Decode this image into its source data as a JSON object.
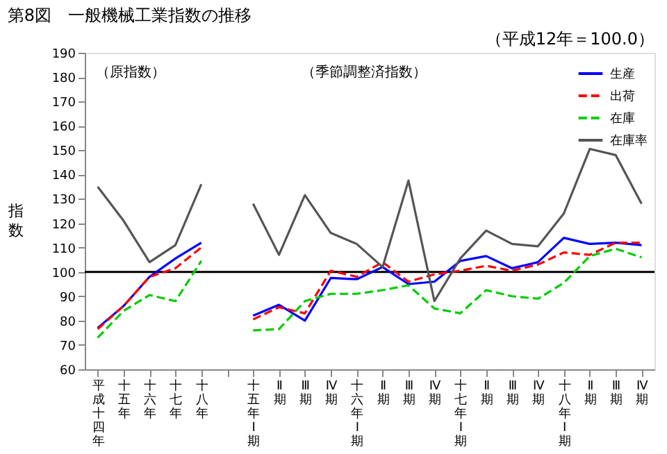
{
  "chart_data": {
    "type": "line",
    "title": "第8図　一般機械工業指数の推移",
    "ylabel": "指数",
    "annotations": [
      "（平成12年＝100.0）",
      "（原指数）",
      "（季節調整済指数）"
    ],
    "categories": [
      "平成十四年",
      "十五年",
      "十六年",
      "十七年",
      "十八年",
      null,
      "十五年Ⅰ期",
      "Ⅱ期",
      "Ⅲ期",
      "Ⅳ期",
      "十六年Ⅰ期",
      "Ⅱ期",
      "Ⅲ期",
      "Ⅳ期",
      "十七年Ⅰ期",
      "Ⅱ期",
      "Ⅲ期",
      "Ⅳ期",
      "十八年Ⅰ期",
      "Ⅱ期",
      "Ⅲ期",
      "Ⅳ期"
    ],
    "series": [
      {
        "name": "生産",
        "color": "#0000ff",
        "line_style": "solid",
        "values": [
          77,
          86,
          98,
          105.5,
          112,
          null,
          82,
          86.5,
          80,
          97.5,
          97,
          102,
          95,
          96,
          104.5,
          106.5,
          101.5,
          104,
          114,
          111.5,
          112,
          111
        ]
      },
      {
        "name": "出荷",
        "color": "#ff0000",
        "line_style": "dashed",
        "values": [
          76.5,
          86,
          98,
          101.5,
          110,
          null,
          80.5,
          85.5,
          83,
          100.5,
          98,
          104,
          96,
          99,
          100.5,
          102.5,
          100.5,
          103,
          108,
          107,
          112,
          112
        ]
      },
      {
        "name": "在庫",
        "color": "#00cc00",
        "line_style": "dashed",
        "values": [
          73,
          84,
          90.5,
          88,
          104.5,
          null,
          76,
          76.5,
          88,
          91,
          91,
          92.5,
          94.5,
          85,
          83,
          92.5,
          90,
          89,
          95.5,
          106.5,
          109.5,
          106
        ]
      },
      {
        "name": "在庫率",
        "color": "#555555",
        "line_style": "solid",
        "values": [
          135,
          121,
          104,
          111,
          136,
          null,
          128,
          107,
          131.5,
          116,
          111.5,
          102,
          137.5,
          88,
          105.5,
          117,
          111.5,
          110.5,
          124,
          150.5,
          148,
          128
        ]
      }
    ],
    "ylim": [
      60,
      190
    ],
    "yticks": [
      60,
      70,
      80,
      90,
      100,
      110,
      120,
      130,
      140,
      150,
      160,
      170,
      180,
      190
    ],
    "ref_lines": [
      {
        "axis": "y",
        "value": 100,
        "color": "#000000"
      }
    ],
    "legend": "top right"
  }
}
